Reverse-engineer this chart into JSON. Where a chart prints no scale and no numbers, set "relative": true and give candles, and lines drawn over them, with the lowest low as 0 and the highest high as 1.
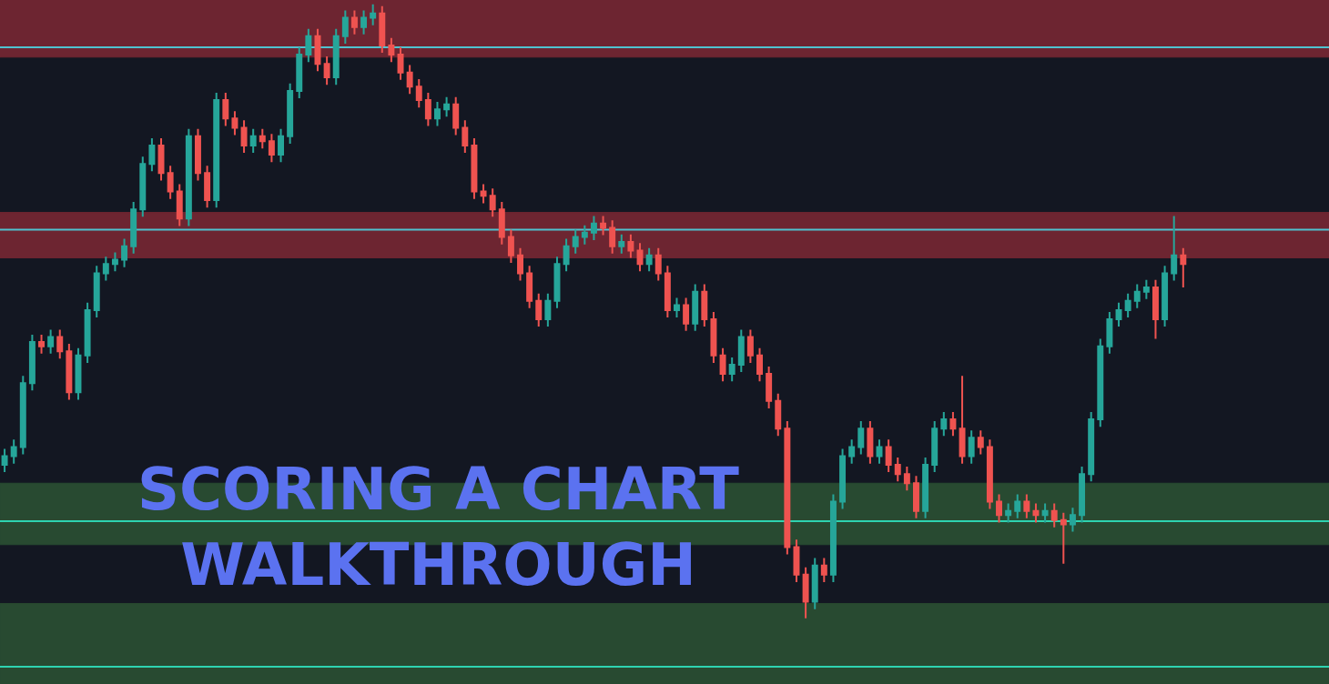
{
  "chart_data": {
    "type": "candlestick",
    "relative": true,
    "categories": [
      null,
      null,
      null,
      null,
      null,
      null,
      null,
      null,
      null,
      null,
      null,
      null,
      null,
      null,
      null,
      null,
      null,
      null,
      null,
      null,
      null,
      null,
      null,
      null,
      null,
      null,
      null,
      null,
      null,
      null,
      null,
      null,
      null,
      null,
      null,
      null,
      null,
      null,
      null,
      null,
      null,
      null,
      null,
      null,
      null,
      null,
      null,
      null,
      null,
      null,
      null,
      null,
      null,
      null,
      null,
      null,
      null,
      null,
      null,
      null,
      null,
      null,
      null,
      null,
      null,
      null,
      null,
      null,
      null,
      null,
      null,
      null,
      null,
      null,
      null,
      null,
      null,
      null,
      null,
      null,
      null,
      null,
      null,
      null,
      null,
      null,
      null,
      null,
      null,
      null,
      null,
      null,
      null,
      null,
      null,
      null,
      null,
      null,
      null,
      null,
      null,
      null,
      null,
      null,
      null,
      null,
      null,
      null,
      null,
      null,
      null,
      null,
      null,
      null,
      null,
      null,
      null,
      null,
      null,
      null,
      null,
      null,
      null,
      null,
      null,
      null,
      null,
      null,
      null
    ],
    "ohlc": [
      [
        0.25,
        0.276,
        0.238,
        0.264
      ],
      [
        0.264,
        0.291,
        0.252,
        0.279
      ],
      [
        0.279,
        0.395,
        0.267,
        0.383
      ],
      [
        0.383,
        0.462,
        0.371,
        0.45
      ],
      [
        0.45,
        0.462,
        0.431,
        0.443
      ],
      [
        0.443,
        0.47,
        0.431,
        0.458
      ],
      [
        0.458,
        0.47,
        0.423,
        0.435
      ],
      [
        0.435,
        0.447,
        0.356,
        0.368
      ],
      [
        0.368,
        0.44,
        0.356,
        0.428
      ],
      [
        0.428,
        0.514,
        0.416,
        0.502
      ],
      [
        0.502,
        0.574,
        0.49,
        0.562
      ],
      [
        0.562,
        0.589,
        0.55,
        0.577
      ],
      [
        0.577,
        0.596,
        0.565,
        0.584
      ],
      [
        0.584,
        0.618,
        0.572,
        0.606
      ],
      [
        0.606,
        0.678,
        0.594,
        0.666
      ],
      [
        0.666,
        0.752,
        0.654,
        0.74
      ],
      [
        0.74,
        0.782,
        0.728,
        0.77
      ],
      [
        0.77,
        0.782,
        0.713,
        0.725
      ],
      [
        0.725,
        0.737,
        0.683,
        0.695
      ],
      [
        0.695,
        0.707,
        0.639,
        0.651
      ],
      [
        0.651,
        0.797,
        0.639,
        0.785
      ],
      [
        0.785,
        0.797,
        0.713,
        0.725
      ],
      [
        0.725,
        0.737,
        0.669,
        0.681
      ],
      [
        0.681,
        0.856,
        0.669,
        0.844
      ],
      [
        0.844,
        0.856,
        0.802,
        0.814
      ],
      [
        0.814,
        0.826,
        0.787,
        0.799
      ],
      [
        0.799,
        0.811,
        0.758,
        0.77
      ],
      [
        0.77,
        0.797,
        0.758,
        0.785
      ],
      [
        0.785,
        0.797,
        0.765,
        0.777
      ],
      [
        0.777,
        0.789,
        0.743,
        0.755
      ],
      [
        0.755,
        0.797,
        0.743,
        0.785
      ],
      [
        0.785,
        0.871,
        0.773,
        0.859
      ],
      [
        0.859,
        0.93,
        0.847,
        0.918
      ],
      [
        0.918,
        0.96,
        0.906,
        0.948
      ],
      [
        0.948,
        0.96,
        0.891,
        0.903
      ],
      [
        0.903,
        0.915,
        0.869,
        0.881
      ],
      [
        0.881,
        0.96,
        0.869,
        0.948
      ],
      [
        0.948,
        0.99,
        0.936,
        0.978
      ],
      [
        0.978,
        0.99,
        0.951,
        0.963
      ],
      [
        0.963,
        0.99,
        0.951,
        0.978
      ],
      [
        0.978,
        1.0,
        0.966,
        0.985
      ],
      [
        0.985,
        0.997,
        0.921,
        0.933
      ],
      [
        0.933,
        0.945,
        0.906,
        0.918
      ],
      [
        0.918,
        0.93,
        0.877,
        0.889
      ],
      [
        0.889,
        0.901,
        0.854,
        0.866
      ],
      [
        0.866,
        0.878,
        0.832,
        0.844
      ],
      [
        0.844,
        0.856,
        0.802,
        0.814
      ],
      [
        0.814,
        0.841,
        0.802,
        0.829
      ],
      [
        0.829,
        0.849,
        0.817,
        0.837
      ],
      [
        0.837,
        0.849,
        0.787,
        0.799
      ],
      [
        0.799,
        0.811,
        0.758,
        0.77
      ],
      [
        0.77,
        0.782,
        0.683,
        0.695
      ],
      [
        0.695,
        0.707,
        0.676,
        0.688
      ],
      [
        0.688,
        0.7,
        0.654,
        0.666
      ],
      [
        0.666,
        0.678,
        0.609,
        0.621
      ],
      [
        0.621,
        0.633,
        0.579,
        0.591
      ],
      [
        0.591,
        0.603,
        0.55,
        0.562
      ],
      [
        0.562,
        0.574,
        0.505,
        0.517
      ],
      [
        0.517,
        0.529,
        0.475,
        0.487
      ],
      [
        0.487,
        0.529,
        0.475,
        0.517
      ],
      [
        0.517,
        0.589,
        0.505,
        0.577
      ],
      [
        0.577,
        0.618,
        0.565,
        0.606
      ],
      [
        0.606,
        0.633,
        0.594,
        0.621
      ],
      [
        0.621,
        0.64,
        0.609,
        0.628
      ],
      [
        0.628,
        0.655,
        0.616,
        0.643
      ],
      [
        0.643,
        0.655,
        0.624,
        0.636
      ],
      [
        0.636,
        0.648,
        0.594,
        0.606
      ],
      [
        0.606,
        0.625,
        0.594,
        0.613
      ],
      [
        0.613,
        0.625,
        0.587,
        0.599
      ],
      [
        0.599,
        0.611,
        0.565,
        0.577
      ],
      [
        0.577,
        0.603,
        0.565,
        0.591
      ],
      [
        0.591,
        0.603,
        0.55,
        0.562
      ],
      [
        0.562,
        0.574,
        0.49,
        0.502
      ],
      [
        0.502,
        0.522,
        0.49,
        0.51
      ],
      [
        0.51,
        0.522,
        0.468,
        0.48
      ],
      [
        0.48,
        0.544,
        0.468,
        0.532
      ],
      [
        0.532,
        0.544,
        0.475,
        0.487
      ],
      [
        0.487,
        0.499,
        0.416,
        0.428
      ],
      [
        0.428,
        0.44,
        0.386,
        0.398
      ],
      [
        0.398,
        0.425,
        0.386,
        0.413
      ],
      [
        0.413,
        0.47,
        0.401,
        0.458
      ],
      [
        0.458,
        0.47,
        0.416,
        0.428
      ],
      [
        0.428,
        0.44,
        0.386,
        0.398
      ],
      [
        0.398,
        0.41,
        0.342,
        0.354
      ],
      [
        0.354,
        0.366,
        0.297,
        0.309
      ],
      [
        0.309,
        0.321,
        0.104,
        0.116
      ],
      [
        0.116,
        0.128,
        0.059,
        0.071
      ],
      [
        0.071,
        0.083,
        0.0,
        0.027
      ],
      [
        0.027,
        0.098,
        0.015,
        0.086
      ],
      [
        0.086,
        0.098,
        0.059,
        0.071
      ],
      [
        0.071,
        0.202,
        0.059,
        0.19
      ],
      [
        0.19,
        0.276,
        0.178,
        0.264
      ],
      [
        0.264,
        0.291,
        0.252,
        0.279
      ],
      [
        0.279,
        0.321,
        0.267,
        0.309
      ],
      [
        0.309,
        0.321,
        0.252,
        0.264
      ],
      [
        0.264,
        0.291,
        0.252,
        0.279
      ],
      [
        0.279,
        0.291,
        0.238,
        0.25
      ],
      [
        0.25,
        0.262,
        0.223,
        0.235
      ],
      [
        0.235,
        0.247,
        0.208,
        0.22
      ],
      [
        0.22,
        0.232,
        0.163,
        0.175
      ],
      [
        0.175,
        0.262,
        0.163,
        0.25
      ],
      [
        0.25,
        0.321,
        0.238,
        0.309
      ],
      [
        0.309,
        0.336,
        0.297,
        0.324
      ],
      [
        0.324,
        0.336,
        0.297,
        0.309
      ],
      [
        0.309,
        0.395,
        0.252,
        0.264
      ],
      [
        0.264,
        0.306,
        0.252,
        0.294
      ],
      [
        0.294,
        0.306,
        0.267,
        0.279
      ],
      [
        0.279,
        0.291,
        0.178,
        0.19
      ],
      [
        0.19,
        0.202,
        0.156,
        0.168
      ],
      [
        0.168,
        0.187,
        0.156,
        0.175
      ],
      [
        0.175,
        0.202,
        0.163,
        0.19
      ],
      [
        0.19,
        0.202,
        0.163,
        0.175
      ],
      [
        0.175,
        0.187,
        0.156,
        0.168
      ],
      [
        0.168,
        0.187,
        0.156,
        0.175
      ],
      [
        0.175,
        0.187,
        0.148,
        0.16
      ],
      [
        0.16,
        0.172,
        0.089,
        0.153
      ],
      [
        0.153,
        0.18,
        0.141,
        0.168
      ],
      [
        0.168,
        0.247,
        0.156,
        0.235
      ],
      [
        0.235,
        0.336,
        0.223,
        0.324
      ],
      [
        0.324,
        0.455,
        0.312,
        0.443
      ],
      [
        0.443,
        0.499,
        0.431,
        0.487
      ],
      [
        0.487,
        0.514,
        0.475,
        0.502
      ],
      [
        0.502,
        0.529,
        0.49,
        0.517
      ],
      [
        0.517,
        0.544,
        0.505,
        0.532
      ],
      [
        0.532,
        0.551,
        0.52,
        0.539
      ],
      [
        0.539,
        0.551,
        0.455,
        0.487
      ],
      [
        0.487,
        0.574,
        0.475,
        0.562
      ],
      [
        0.562,
        0.655,
        0.55,
        0.591
      ],
      [
        0.591,
        0.603,
        0.539,
        0.577
      ]
    ],
    "bands": [
      {
        "axis": "y",
        "from": 0.914,
        "to": 1.007,
        "color": "#8c2a36"
      },
      {
        "axis": "y",
        "from": 0.587,
        "to": 0.661,
        "color": "#8c2a36"
      },
      {
        "axis": "y",
        "from": 0.12,
        "to": 0.22,
        "color": "#2f5b36"
      },
      {
        "axis": "y",
        "from": -0.107,
        "to": 0.024,
        "color": "#2f5b36"
      }
    ],
    "ref_lines": [
      {
        "axis": "y",
        "value": 0.93,
        "color": "#4fc3d0"
      },
      {
        "axis": "y",
        "value": 0.633,
        "color": "#4fc3d0"
      },
      {
        "axis": "y",
        "value": 0.158,
        "color": "#2ed3b0"
      },
      {
        "axis": "y",
        "value": -0.079,
        "color": "#2ed3b0"
      }
    ],
    "annotations": [
      "SCORING A CHART\nWALKTHROUGH"
    ]
  }
}
